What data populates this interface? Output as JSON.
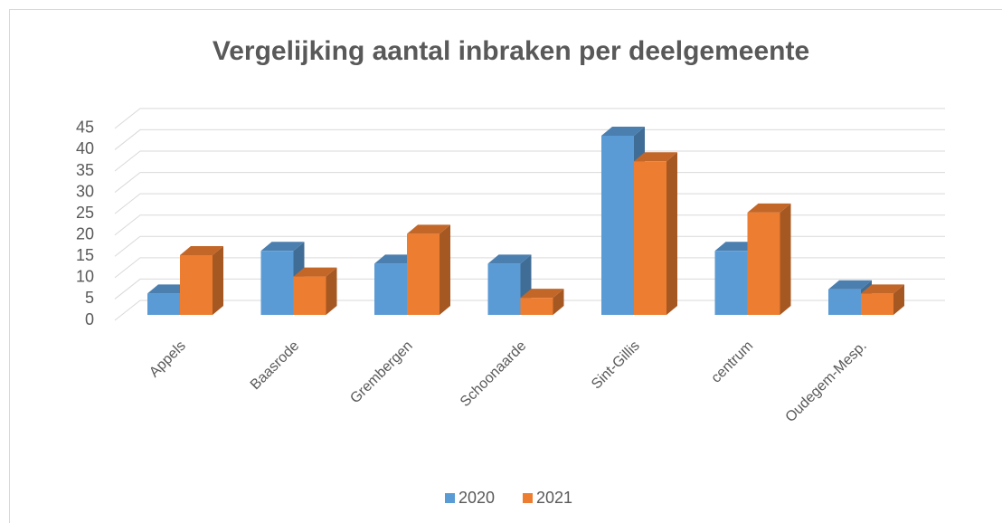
{
  "chart_data": {
    "type": "bar3d",
    "title": "Vergelijking aantal inbraken per deelgemeente",
    "categories": [
      "Appels",
      "Baasrode",
      "Grembergen",
      "Schoonaarde",
      "Sint-Gillis",
      "centrum",
      "Oudegem-Mesp."
    ],
    "series": [
      {
        "name": "2020",
        "color": "#5b9bd5",
        "values": [
          5,
          15,
          12,
          12,
          42,
          15,
          6
        ]
      },
      {
        "name": "2021",
        "color": "#ed7d31",
        "values": [
          14,
          9,
          19,
          4,
          36,
          24,
          5
        ]
      }
    ],
    "ylim": [
      0,
      45
    ],
    "yticks": [
      0,
      5,
      10,
      15,
      20,
      25,
      30,
      35,
      40,
      45
    ],
    "grid": true,
    "legend": "bottom"
  }
}
